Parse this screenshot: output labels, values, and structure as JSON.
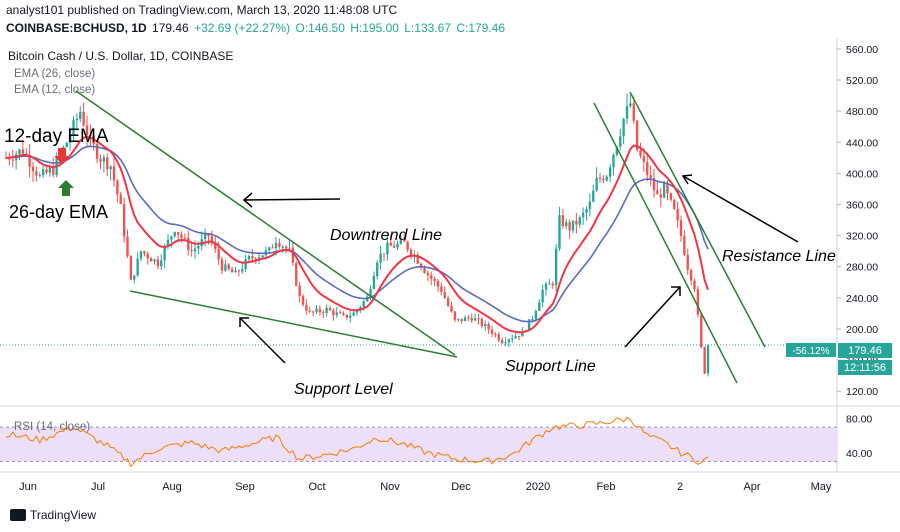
{
  "header": {
    "publisher_line": "analyst101 published on TradingView.com, March 13, 2020 11:48:08 UTC",
    "symbol": "COINBASE:BCHUSD, 1D",
    "last": "179.46",
    "change": "+32.69 (+22.27%)",
    "open": "O:146.50",
    "high": "H:195.00",
    "low": "L:133.67",
    "close": "C:179.46"
  },
  "chart_meta": {
    "title": "Bitcoin Cash / U.S. Dollar, 1D, COINBASE",
    "ema_26_label": "EMA (26, close)",
    "ema_12_label": "EMA (12, close)",
    "rsi_label": "RSI (14, close)",
    "price_badge": "179.46",
    "pct_badge": "-56.12%",
    "countdown_badge": "12:11:56",
    "colors": {
      "up": "#26a69a",
      "down": "#ef5350",
      "ema12": "#f23645",
      "ema26": "#5b6bbf",
      "rsi": "#f57c00",
      "rsi_band": "#e8d7f5",
      "trendline": "#2e7d32"
    }
  },
  "annotations": {
    "ema12": "12-day EMA",
    "ema26": "26-day EMA",
    "downtrend": "Downtrend Line",
    "resistance": "Resistance Line",
    "support_level": "Support Level",
    "support_line": "Support Line"
  },
  "footer": {
    "brand": "TradingView"
  },
  "chart_data": [
    {
      "type": "candlestick",
      "title": "Bitcoin Cash / U.S. Dollar, 1D, COINBASE",
      "x_ticks": [
        "Jun",
        "Jul",
        "Aug",
        "Sep",
        "Oct",
        "Nov",
        "Dec",
        "2020",
        "Feb",
        "2",
        "Apr",
        "May"
      ],
      "y_ticks": [
        120,
        160,
        200,
        240,
        280,
        320,
        360,
        400,
        440,
        480,
        520,
        560
      ],
      "ylim": [
        110,
        565
      ],
      "grid": false,
      "close_keypoints": [
        [
          0,
          420
        ],
        [
          5,
          430
        ],
        [
          10,
          395
        ],
        [
          14,
          405
        ],
        [
          18,
          440
        ],
        [
          20,
          460
        ],
        [
          22,
          480
        ],
        [
          25,
          440
        ],
        [
          28,
          420
        ],
        [
          31,
          410
        ],
        [
          34,
          355
        ],
        [
          37,
          260
        ],
        [
          40,
          300
        ],
        [
          45,
          285
        ],
        [
          50,
          330
        ],
        [
          55,
          300
        ],
        [
          60,
          320
        ],
        [
          64,
          280
        ],
        [
          68,
          270
        ],
        [
          72,
          290
        ],
        [
          78,
          300
        ],
        [
          80,
          315
        ],
        [
          84,
          300
        ],
        [
          87,
          240
        ],
        [
          90,
          220
        ],
        [
          95,
          225
        ],
        [
          100,
          215
        ],
        [
          103,
          220
        ],
        [
          107,
          240
        ],
        [
          110,
          290
        ],
        [
          113,
          305
        ],
        [
          118,
          310
        ],
        [
          121,
          295
        ],
        [
          125,
          270
        ],
        [
          129,
          250
        ],
        [
          133,
          210
        ],
        [
          138,
          215
        ],
        [
          143,
          200
        ],
        [
          147,
          185
        ],
        [
          150,
          190
        ],
        [
          153,
          195
        ],
        [
          156,
          215
        ],
        [
          159,
          250
        ],
        [
          162,
          260
        ],
        [
          164,
          340
        ],
        [
          167,
          330
        ],
        [
          170,
          340
        ],
        [
          173,
          360
        ],
        [
          175,
          390
        ],
        [
          178,
          400
        ],
        [
          181,
          440
        ],
        [
          183,
          470
        ],
        [
          185,
          490
        ],
        [
          187,
          430
        ],
        [
          190,
          400
        ],
        [
          193,
          370
        ],
        [
          195,
          380
        ],
        [
          198,
          350
        ],
        [
          200,
          320
        ],
        [
          202,
          280
        ],
        [
          204,
          255
        ],
        [
          206,
          175
        ],
        [
          207,
          145
        ],
        [
          208,
          179.46
        ]
      ],
      "series": [
        {
          "name": "EMA (26, close)"
        },
        {
          "name": "EMA (12, close)"
        }
      ]
    },
    {
      "type": "line",
      "title": "RSI (14, close)",
      "y_ticks": [
        40,
        80
      ],
      "band": [
        30,
        70
      ],
      "keypoints": [
        [
          0,
          62
        ],
        [
          10,
          55
        ],
        [
          20,
          70
        ],
        [
          30,
          48
        ],
        [
          37,
          28
        ],
        [
          45,
          45
        ],
        [
          55,
          52
        ],
        [
          64,
          42
        ],
        [
          72,
          50
        ],
        [
          80,
          58
        ],
        [
          87,
          33
        ],
        [
          95,
          38
        ],
        [
          103,
          45
        ],
        [
          110,
          58
        ],
        [
          118,
          50
        ],
        [
          125,
          40
        ],
        [
          133,
          33
        ],
        [
          143,
          30
        ],
        [
          150,
          38
        ],
        [
          156,
          55
        ],
        [
          162,
          70
        ],
        [
          170,
          72
        ],
        [
          175,
          74
        ],
        [
          181,
          78
        ],
        [
          185,
          80
        ],
        [
          190,
          60
        ],
        [
          195,
          52
        ],
        [
          200,
          40
        ],
        [
          204,
          33
        ],
        [
          206,
          28
        ],
        [
          208,
          34
        ]
      ]
    }
  ]
}
